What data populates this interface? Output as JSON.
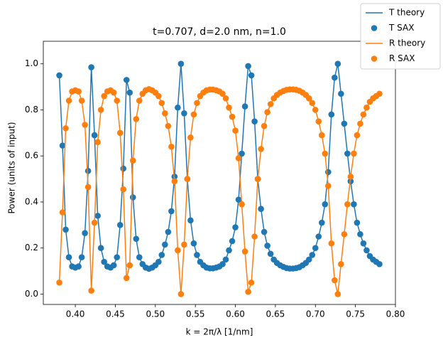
{
  "chart_data": {
    "type": "line-scatter",
    "title": "t=0.707, d=2.0 nm, n=1.0",
    "x_label": "k = 2π/λ [1/nm]",
    "y_label": "Power (units of input)",
    "xlim": [
      0.36,
      0.8
    ],
    "ylim": [
      -0.045,
      1.098
    ],
    "xticks": [
      {
        "value": 0.4,
        "label": "0.40"
      },
      {
        "value": 0.45,
        "label": "0.45"
      },
      {
        "value": 0.5,
        "label": "0.50"
      },
      {
        "value": 0.55,
        "label": "0.55"
      },
      {
        "value": 0.6,
        "label": "0.60"
      },
      {
        "value": 0.65,
        "label": "0.65"
      },
      {
        "value": 0.7,
        "label": "0.70"
      },
      {
        "value": 0.75,
        "label": "0.75"
      },
      {
        "value": 0.8,
        "label": "0.80"
      }
    ],
    "yticks": [
      {
        "value": 0,
        "label": "0.0"
      },
      0.2,
      0.4,
      0.6,
      0.8,
      {
        "value": 1,
        "label": "1.0"
      }
    ],
    "legend": "outside upper right",
    "x": [
      0.38,
      0.384,
      0.388,
      0.392,
      0.396,
      0.4,
      0.404,
      0.408,
      0.412,
      0.416,
      0.42,
      0.424,
      0.428,
      0.432,
      0.436,
      0.44,
      0.444,
      0.448,
      0.452,
      0.456,
      0.46,
      0.464,
      0.468,
      0.472,
      0.476,
      0.48,
      0.484,
      0.488,
      0.492,
      0.496,
      0.5,
      0.504,
      0.508,
      0.512,
      0.516,
      0.52,
      0.524,
      0.528,
      0.532,
      0.536,
      0.54,
      0.544,
      0.548,
      0.552,
      0.556,
      0.56,
      0.564,
      0.568,
      0.572,
      0.576,
      0.58,
      0.584,
      0.588,
      0.592,
      0.596,
      0.6,
      0.604,
      0.608,
      0.612,
      0.616,
      0.62,
      0.624,
      0.628,
      0.632,
      0.636,
      0.64,
      0.644,
      0.648,
      0.652,
      0.656,
      0.66,
      0.664,
      0.668,
      0.672,
      0.676,
      0.68,
      0.684,
      0.688,
      0.692,
      0.696,
      0.7,
      0.704,
      0.708,
      0.712,
      0.716,
      0.72,
      0.724,
      0.728,
      0.732,
      0.736,
      0.74,
      0.744,
      0.748,
      0.752,
      0.756,
      0.76,
      0.764,
      0.768,
      0.772,
      0.776,
      0.78
    ],
    "series": [
      {
        "name": "T theory",
        "style": "line",
        "color": "#1f77b4",
        "values": [
          0.95,
          0.645,
          0.28,
          0.16,
          0.12,
          0.115,
          0.12,
          0.16,
          0.265,
          0.535,
          0.985,
          0.69,
          0.34,
          0.2,
          0.14,
          0.12,
          0.115,
          0.125,
          0.16,
          0.3,
          0.545,
          0.93,
          0.875,
          0.42,
          0.24,
          0.16,
          0.13,
          0.115,
          0.11,
          0.115,
          0.125,
          0.14,
          0.17,
          0.215,
          0.27,
          0.36,
          0.51,
          0.81,
          1.0,
          0.785,
          0.5,
          0.32,
          0.22,
          0.17,
          0.14,
          0.125,
          0.115,
          0.112,
          0.112,
          0.115,
          0.12,
          0.13,
          0.15,
          0.19,
          0.23,
          0.29,
          0.41,
          0.61,
          0.815,
          0.99,
          0.95,
          0.75,
          0.5,
          0.37,
          0.27,
          0.21,
          0.175,
          0.15,
          0.135,
          0.125,
          0.118,
          0.113,
          0.111,
          0.111,
          0.113,
          0.117,
          0.125,
          0.135,
          0.15,
          0.17,
          0.2,
          0.25,
          0.31,
          0.39,
          0.53,
          0.78,
          0.94,
          1.0,
          0.87,
          0.74,
          0.61,
          0.49,
          0.39,
          0.31,
          0.26,
          0.22,
          0.19,
          0.165,
          0.15,
          0.14,
          0.13
        ]
      },
      {
        "name": "T SAX",
        "style": "marker",
        "color": "#1f77b4",
        "values": [
          0.95,
          0.645,
          0.28,
          0.16,
          0.12,
          0.115,
          0.12,
          0.16,
          0.265,
          0.535,
          0.985,
          0.69,
          0.34,
          0.2,
          0.14,
          0.12,
          0.115,
          0.125,
          0.16,
          0.3,
          0.545,
          0.93,
          0.875,
          0.42,
          0.24,
          0.16,
          0.13,
          0.115,
          0.11,
          0.115,
          0.125,
          0.14,
          0.17,
          0.215,
          0.27,
          0.36,
          0.51,
          0.81,
          1.0,
          0.785,
          0.5,
          0.32,
          0.22,
          0.17,
          0.14,
          0.125,
          0.115,
          0.112,
          0.112,
          0.115,
          0.12,
          0.13,
          0.15,
          0.19,
          0.23,
          0.29,
          0.41,
          0.61,
          0.815,
          0.99,
          0.95,
          0.75,
          0.5,
          0.37,
          0.27,
          0.21,
          0.175,
          0.15,
          0.135,
          0.125,
          0.118,
          0.113,
          0.111,
          0.111,
          0.113,
          0.117,
          0.125,
          0.135,
          0.15,
          0.17,
          0.2,
          0.25,
          0.31,
          0.39,
          0.53,
          0.78,
          0.94,
          1.0,
          0.87,
          0.74,
          0.61,
          0.49,
          0.39,
          0.31,
          0.26,
          0.22,
          0.19,
          0.165,
          0.15,
          0.14,
          0.13
        ]
      },
      {
        "name": "R theory",
        "style": "line",
        "color": "#ff7f0e",
        "values": [
          0.05,
          0.355,
          0.72,
          0.84,
          0.88,
          0.885,
          0.88,
          0.84,
          0.735,
          0.465,
          0.015,
          0.31,
          0.66,
          0.8,
          0.86,
          0.88,
          0.885,
          0.875,
          0.84,
          0.7,
          0.455,
          0.07,
          0.125,
          0.58,
          0.76,
          0.84,
          0.87,
          0.885,
          0.89,
          0.885,
          0.875,
          0.86,
          0.83,
          0.785,
          0.73,
          0.64,
          0.49,
          0.19,
          0.0,
          0.215,
          0.5,
          0.68,
          0.78,
          0.83,
          0.86,
          0.875,
          0.885,
          0.888,
          0.888,
          0.885,
          0.88,
          0.87,
          0.85,
          0.81,
          0.77,
          0.71,
          0.59,
          0.39,
          0.185,
          0.01,
          0.05,
          0.25,
          0.5,
          0.63,
          0.73,
          0.79,
          0.825,
          0.85,
          0.865,
          0.875,
          0.882,
          0.887,
          0.889,
          0.889,
          0.887,
          0.883,
          0.875,
          0.865,
          0.85,
          0.83,
          0.8,
          0.75,
          0.69,
          0.61,
          0.47,
          0.22,
          0.06,
          0.0,
          0.13,
          0.26,
          0.39,
          0.51,
          0.61,
          0.69,
          0.74,
          0.78,
          0.81,
          0.835,
          0.85,
          0.86,
          0.87
        ]
      },
      {
        "name": "R SAX",
        "style": "marker",
        "color": "#ff7f0e",
        "values": [
          0.05,
          0.355,
          0.72,
          0.84,
          0.88,
          0.885,
          0.88,
          0.84,
          0.735,
          0.465,
          0.015,
          0.31,
          0.66,
          0.8,
          0.86,
          0.88,
          0.885,
          0.875,
          0.84,
          0.7,
          0.455,
          0.07,
          0.125,
          0.58,
          0.76,
          0.84,
          0.87,
          0.885,
          0.89,
          0.885,
          0.875,
          0.86,
          0.83,
          0.785,
          0.73,
          0.64,
          0.49,
          0.19,
          0.0,
          0.215,
          0.5,
          0.68,
          0.78,
          0.83,
          0.86,
          0.875,
          0.885,
          0.888,
          0.888,
          0.885,
          0.88,
          0.87,
          0.85,
          0.81,
          0.77,
          0.71,
          0.59,
          0.39,
          0.185,
          0.01,
          0.05,
          0.25,
          0.5,
          0.63,
          0.73,
          0.79,
          0.825,
          0.85,
          0.865,
          0.875,
          0.882,
          0.887,
          0.889,
          0.889,
          0.887,
          0.883,
          0.875,
          0.865,
          0.85,
          0.83,
          0.8,
          0.75,
          0.69,
          0.61,
          0.47,
          0.22,
          0.06,
          0.0,
          0.13,
          0.26,
          0.39,
          0.51,
          0.61,
          0.69,
          0.74,
          0.78,
          0.81,
          0.835,
          0.85,
          0.86,
          0.87
        ]
      }
    ]
  }
}
